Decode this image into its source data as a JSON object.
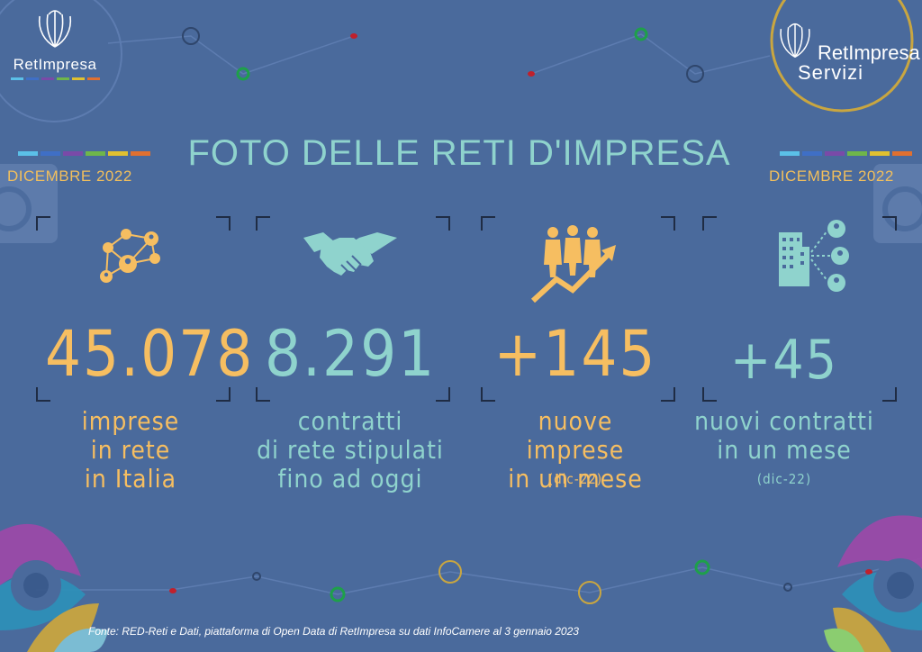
{
  "header": {
    "title": "FOTO DELLE RETI D'IMPRESA",
    "left_date": "DICEMBRE  2022",
    "right_date": "DICEMBRE  2022"
  },
  "logos": {
    "left_name": "RetImpresa",
    "right_name_line1": "RetImpresa",
    "right_name_line2": "Servizi"
  },
  "stats": [
    {
      "value": "45.078",
      "lines": [
        "imprese",
        "in rete",
        "in Italia"
      ],
      "note": "",
      "icon": "network-people-icon",
      "color": "orange"
    },
    {
      "value": "8.291",
      "lines": [
        "contratti",
        "di rete stipulati",
        "fino ad oggi"
      ],
      "note": "",
      "icon": "handshake-icon",
      "color": "teal"
    },
    {
      "value": "+145",
      "lines": [
        "nuove imprese",
        "in un mese"
      ],
      "note": "(dic-22)",
      "icon": "people-growth-icon",
      "color": "orange"
    },
    {
      "value": "+45",
      "lines": [
        "nuovi contratti",
        "in un mese"
      ],
      "note": "(dic-22)",
      "icon": "building-connections-icon",
      "color": "teal"
    }
  ],
  "footer": {
    "source": "Fonte: RED-Reti e Dati, piattaforma di Open Data di RetImpresa su dati InfoCamere al 3 gennaio 2023"
  },
  "colors": {
    "background": "#4a6a9c",
    "accent_orange": "#f6be61",
    "accent_teal": "#8fd3cd",
    "date_color": "#f2bf5c"
  }
}
